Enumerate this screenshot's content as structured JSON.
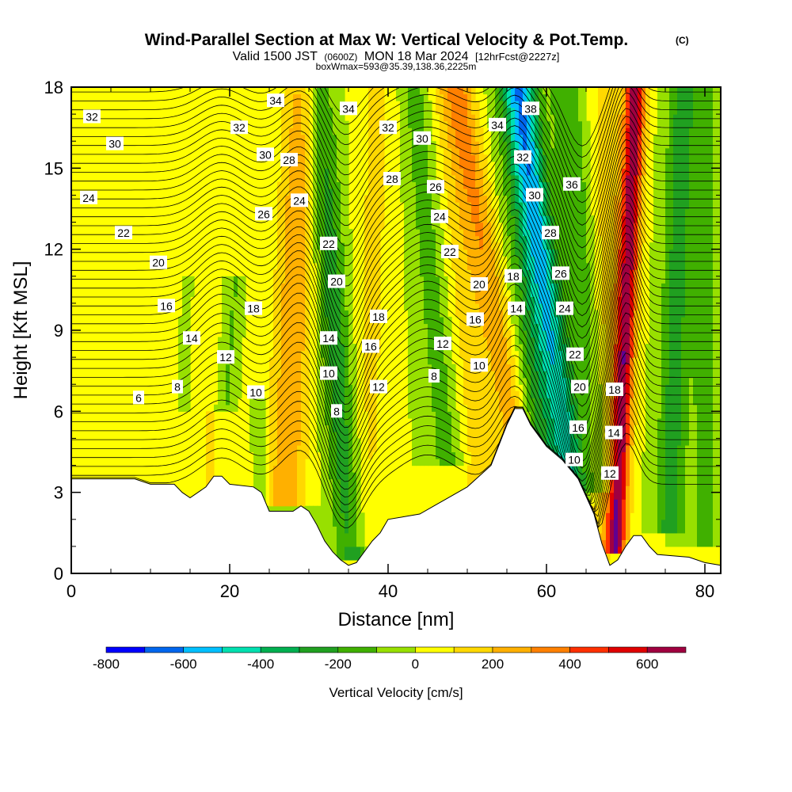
{
  "title": {
    "main": "Wind-Parallel Section at Max W: Vertical Velocity & Pot.Temp.",
    "copyright": "(C)",
    "valid_prefix": "Valid 1500 JST",
    "valid_utc": "(0600Z)",
    "valid_date": "MON 18 Mar 2024",
    "valid_fcst": "[12hrFcst@2227z]",
    "box_info": "boxWmax=593@35.39,138.36,2225m"
  },
  "chart_data": {
    "type": "heatmap",
    "xlabel": "Distance [nm]",
    "ylabel": "Height [Kft MSL]",
    "xlim": [
      0,
      82
    ],
    "ylim": [
      0,
      18
    ],
    "x_ticks": [
      0,
      20,
      40,
      60,
      80
    ],
    "y_ticks": [
      0,
      3,
      6,
      9,
      12,
      15,
      18
    ],
    "colorbar": {
      "label": "Vertical Velocity [cm/s]",
      "tick_labels": [
        "-800",
        "-600",
        "-400",
        "-200",
        "0",
        "200",
        "400",
        "600"
      ],
      "tick_values": [
        -800,
        -600,
        -400,
        -200,
        0,
        200,
        400,
        600
      ],
      "bounds": [
        -800,
        -700,
        -600,
        -500,
        -400,
        -300,
        -200,
        -100,
        0,
        100,
        200,
        300,
        400,
        500,
        600,
        700
      ],
      "colors": [
        "#0000ff",
        "#0066ee",
        "#00c0ff",
        "#00e0b0",
        "#00b050",
        "#20a020",
        "#40b000",
        "#98e000",
        "#ffff00",
        "#ffd800",
        "#ffb000",
        "#ff8000",
        "#ff3000",
        "#e00000",
        "#a00040",
        "#600090"
      ]
    },
    "terrain_kft": [
      [
        0,
        3.5
      ],
      [
        4,
        3.5
      ],
      [
        8,
        3.5
      ],
      [
        10,
        3.3
      ],
      [
        13,
        3.3
      ],
      [
        14,
        3.0
      ],
      [
        15,
        2.8
      ],
      [
        16,
        3.0
      ],
      [
        17,
        3.2
      ],
      [
        18,
        3.6
      ],
      [
        19,
        3.6
      ],
      [
        20,
        3.3
      ],
      [
        23,
        3.2
      ],
      [
        24,
        3.0
      ],
      [
        25,
        2.3
      ],
      [
        28,
        2.3
      ],
      [
        29,
        2.5
      ],
      [
        30,
        2.3
      ],
      [
        31,
        1.8
      ],
      [
        32,
        1.2
      ],
      [
        33,
        0.8
      ],
      [
        34,
        0.5
      ],
      [
        35,
        0.3
      ],
      [
        36,
        0.4
      ],
      [
        37,
        0.8
      ],
      [
        38,
        1.2
      ],
      [
        39,
        1.5
      ],
      [
        40,
        2.0
      ],
      [
        44,
        2.2
      ],
      [
        47,
        2.7
      ],
      [
        50,
        3.2
      ],
      [
        53,
        4.0
      ],
      [
        55,
        5.5
      ],
      [
        56,
        6.1
      ],
      [
        57,
        6.1
      ],
      [
        58,
        5.5
      ],
      [
        60,
        4.7
      ],
      [
        62,
        4.2
      ],
      [
        64,
        3.5
      ],
      [
        66,
        2.2
      ],
      [
        67,
        1.1
      ],
      [
        68,
        0.3
      ],
      [
        69,
        0.5
      ],
      [
        70,
        1.0
      ],
      [
        71,
        1.4
      ],
      [
        72,
        1.4
      ],
      [
        73,
        1.0
      ],
      [
        74,
        0.7
      ],
      [
        78,
        0.6
      ],
      [
        80,
        0.4
      ],
      [
        82,
        0.3
      ]
    ],
    "contour_label_step_K": 2,
    "contour_labels": [
      {
        "text": "32",
        "x": 2.6,
        "y": 16.9
      },
      {
        "text": "30",
        "x": 5.5,
        "y": 15.9
      },
      {
        "text": "24",
        "x": 2.2,
        "y": 13.9
      },
      {
        "text": "22",
        "x": 6.6,
        "y": 12.6
      },
      {
        "text": "20",
        "x": 11.0,
        "y": 11.5
      },
      {
        "text": "16",
        "x": 12.0,
        "y": 9.9
      },
      {
        "text": "14",
        "x": 15.2,
        "y": 8.7
      },
      {
        "text": "12",
        "x": 19.5,
        "y": 8.0
      },
      {
        "text": "10",
        "x": 23.3,
        "y": 6.7
      },
      {
        "text": "8",
        "x": 13.4,
        "y": 6.9
      },
      {
        "text": "6",
        "x": 8.5,
        "y": 6.5
      },
      {
        "text": "18",
        "x": 23.0,
        "y": 9.8
      },
      {
        "text": "34",
        "x": 25.8,
        "y": 17.5
      },
      {
        "text": "32",
        "x": 21.2,
        "y": 16.5
      },
      {
        "text": "30",
        "x": 24.5,
        "y": 15.5
      },
      {
        "text": "28",
        "x": 27.5,
        "y": 15.3
      },
      {
        "text": "26",
        "x": 24.3,
        "y": 13.3
      },
      {
        "text": "24",
        "x": 28.8,
        "y": 13.8
      },
      {
        "text": "22",
        "x": 32.5,
        "y": 12.2
      },
      {
        "text": "20",
        "x": 33.5,
        "y": 10.8
      },
      {
        "text": "14",
        "x": 32.5,
        "y": 8.7
      },
      {
        "text": "10",
        "x": 32.5,
        "y": 7.4
      },
      {
        "text": "8",
        "x": 33.5,
        "y": 6.0
      },
      {
        "text": "34",
        "x": 35.0,
        "y": 17.2
      },
      {
        "text": "32",
        "x": 40.0,
        "y": 16.5
      },
      {
        "text": "28",
        "x": 40.5,
        "y": 14.6
      },
      {
        "text": "30",
        "x": 44.3,
        "y": 16.1
      },
      {
        "text": "26",
        "x": 46.0,
        "y": 14.3
      },
      {
        "text": "24",
        "x": 46.5,
        "y": 13.2
      },
      {
        "text": "22",
        "x": 47.8,
        "y": 11.9
      },
      {
        "text": "18",
        "x": 38.8,
        "y": 9.5
      },
      {
        "text": "16",
        "x": 37.8,
        "y": 8.4
      },
      {
        "text": "12",
        "x": 38.8,
        "y": 6.9
      },
      {
        "text": "8",
        "x": 45.8,
        "y": 7.3
      },
      {
        "text": "12",
        "x": 46.9,
        "y": 8.5
      },
      {
        "text": "10",
        "x": 51.5,
        "y": 7.7
      },
      {
        "text": "16",
        "x": 51.0,
        "y": 9.4
      },
      {
        "text": "20",
        "x": 51.5,
        "y": 10.7
      },
      {
        "text": "18",
        "x": 55.8,
        "y": 11.0
      },
      {
        "text": "14",
        "x": 56.2,
        "y": 9.8
      },
      {
        "text": "34",
        "x": 53.8,
        "y": 16.6
      },
      {
        "text": "38",
        "x": 58.0,
        "y": 17.2
      },
      {
        "text": "32",
        "x": 57.0,
        "y": 15.4
      },
      {
        "text": "36",
        "x": 63.2,
        "y": 14.4
      },
      {
        "text": "30",
        "x": 58.5,
        "y": 14.0
      },
      {
        "text": "28",
        "x": 60.5,
        "y": 12.6
      },
      {
        "text": "26",
        "x": 61.8,
        "y": 11.1
      },
      {
        "text": "24",
        "x": 62.3,
        "y": 9.8
      },
      {
        "text": "22",
        "x": 63.6,
        "y": 8.1
      },
      {
        "text": "20",
        "x": 64.2,
        "y": 6.9
      },
      {
        "text": "16",
        "x": 64.0,
        "y": 5.4
      },
      {
        "text": "10",
        "x": 63.5,
        "y": 4.2
      },
      {
        "text": "12",
        "x": 68.0,
        "y": 3.7
      },
      {
        "text": "14",
        "x": 68.5,
        "y": 5.2
      },
      {
        "text": "18",
        "x": 68.6,
        "y": 6.8
      }
    ]
  }
}
